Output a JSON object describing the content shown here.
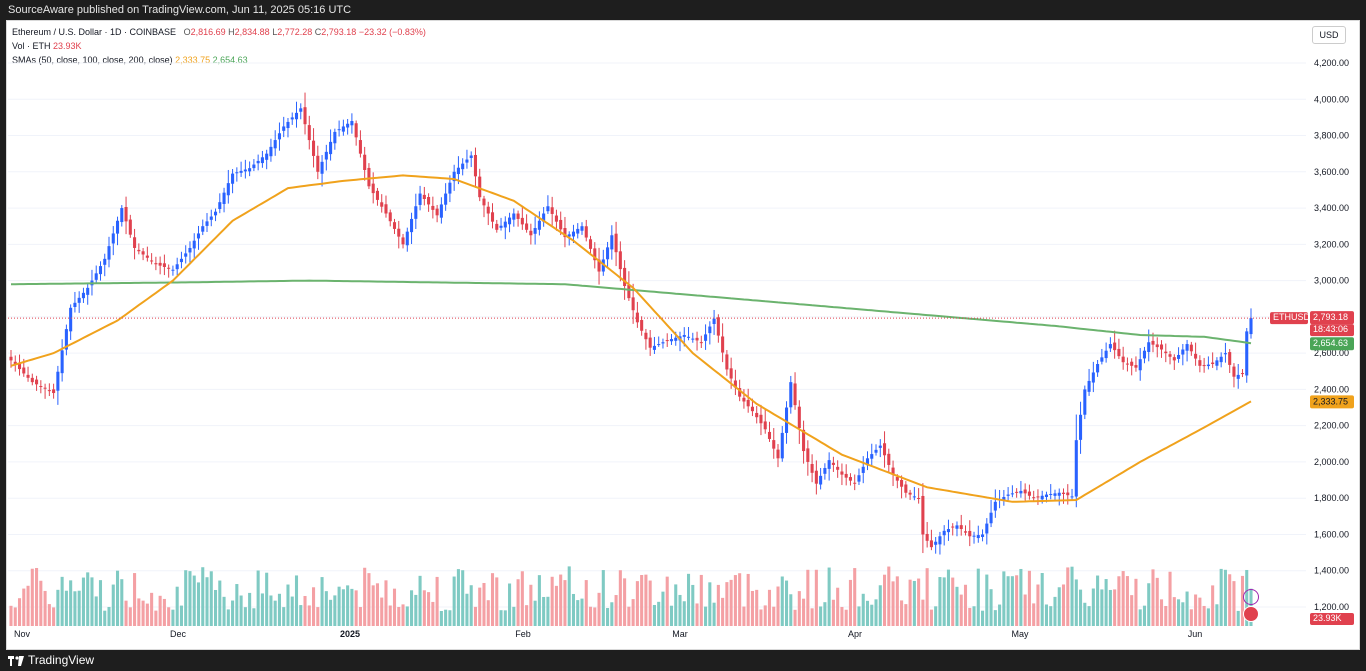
{
  "header": {
    "published": "SourceAware published on TradingView.com, Jun 11, 2025 05:16 UTC"
  },
  "footer": {
    "brand": "TradingView"
  },
  "legend": {
    "symbol": "Ethereum / U.S. Dollar · 1D · COINBASE",
    "o_label": "O",
    "o": "2,816.69",
    "h_label": "H",
    "h": "2,834.88",
    "l_label": "L",
    "l": "2,772.28",
    "c_label": "C",
    "c": "2,793.18",
    "change": "−23.32 (−0.83%)",
    "vol_label": "Vol · ETH",
    "vol": "23.93K",
    "sma_label": "SMAs (50, close, 100, close, 200, close)",
    "sma50": "2,333.75",
    "sma200": "2,654.63"
  },
  "currency": "USD",
  "price_tags": {
    "symbol": "ETHUSD",
    "last": "2,793.18",
    "countdown": "18:43:06",
    "sma200": "2,654.63",
    "sma50": "2,333.75",
    "volume": "23.93K"
  },
  "colors": {
    "up": "#2962ff",
    "down": "#e0414e",
    "vol_up": "#7fcac3",
    "vol_down": "#f4a0a4",
    "sma50": "#f0a21c",
    "sma200": "#6bb36e"
  },
  "chart_data": {
    "type": "candlestick",
    "y_ticks": [
      "4,200.00",
      "4,000.00",
      "3,800.00",
      "3,600.00",
      "3,400.00",
      "3,200.00",
      "3,000.00",
      "2,800.00",
      "2,600.00",
      "2,400.00",
      "2,200.00",
      "2,000.00",
      "1,800.00",
      "1,600.00",
      "1,400.00",
      "1,200.00"
    ],
    "x_ticks": [
      "Nov",
      "Dec",
      "2025",
      "Feb",
      "Mar",
      "Apr",
      "May",
      "Jun"
    ],
    "ylim": [
      1200,
      4200
    ],
    "anchors": [
      [
        0,
        2560
      ],
      [
        5,
        2440
      ],
      [
        10,
        2380
      ],
      [
        14,
        2850
      ],
      [
        18,
        2960
      ],
      [
        22,
        3120
      ],
      [
        26,
        3400
      ],
      [
        29,
        3180
      ],
      [
        34,
        3090
      ],
      [
        38,
        3060
      ],
      [
        42,
        3180
      ],
      [
        45,
        3300
      ],
      [
        48,
        3380
      ],
      [
        52,
        3590
      ],
      [
        56,
        3620
      ],
      [
        60,
        3700
      ],
      [
        64,
        3850
      ],
      [
        68,
        3950
      ],
      [
        72,
        3600
      ],
      [
        76,
        3820
      ],
      [
        80,
        3880
      ],
      [
        84,
        3520
      ],
      [
        88,
        3370
      ],
      [
        92,
        3200
      ],
      [
        96,
        3480
      ],
      [
        100,
        3360
      ],
      [
        104,
        3600
      ],
      [
        108,
        3690
      ],
      [
        110,
        3460
      ],
      [
        114,
        3280
      ],
      [
        118,
        3370
      ],
      [
        122,
        3250
      ],
      [
        126,
        3410
      ],
      [
        130,
        3240
      ],
      [
        134,
        3300
      ],
      [
        138,
        3050
      ],
      [
        141,
        3250
      ],
      [
        144,
        2970
      ],
      [
        147,
        2770
      ],
      [
        150,
        2630
      ],
      [
        154,
        2670
      ],
      [
        158,
        2700
      ],
      [
        162,
        2660
      ],
      [
        165,
        2790
      ],
      [
        168,
        2510
      ],
      [
        171,
        2360
      ],
      [
        174,
        2280
      ],
      [
        177,
        2180
      ],
      [
        180,
        2020
      ],
      [
        183,
        2440
      ],
      [
        186,
        2060
      ],
      [
        189,
        1880
      ],
      [
        192,
        2010
      ],
      [
        195,
        1930
      ],
      [
        198,
        1880
      ],
      [
        201,
        2020
      ],
      [
        204,
        2090
      ],
      [
        207,
        1930
      ],
      [
        210,
        1830
      ],
      [
        213,
        1800
      ],
      [
        214,
        1600
      ],
      [
        216,
        1530
      ],
      [
        219,
        1620
      ],
      [
        222,
        1650
      ],
      [
        225,
        1590
      ],
      [
        228,
        1600
      ],
      [
        231,
        1780
      ],
      [
        234,
        1820
      ],
      [
        237,
        1840
      ],
      [
        240,
        1800
      ],
      [
        243,
        1820
      ],
      [
        246,
        1830
      ],
      [
        249,
        1810
      ],
      [
        250,
        2120
      ],
      [
        252,
        2400
      ],
      [
        255,
        2540
      ],
      [
        258,
        2650
      ],
      [
        261,
        2550
      ],
      [
        264,
        2520
      ],
      [
        267,
        2660
      ],
      [
        270,
        2620
      ],
      [
        273,
        2560
      ],
      [
        276,
        2650
      ],
      [
        279,
        2530
      ],
      [
        282,
        2540
      ],
      [
        285,
        2600
      ],
      [
        287,
        2470
      ],
      [
        289,
        2490
      ],
      [
        290,
        2720
      ],
      [
        291,
        2793
      ]
    ],
    "sma50_anchors": [
      [
        0,
        2530
      ],
      [
        10,
        2600
      ],
      [
        25,
        2780
      ],
      [
        38,
        3000
      ],
      [
        52,
        3330
      ],
      [
        65,
        3510
      ],
      [
        78,
        3550
      ],
      [
        92,
        3580
      ],
      [
        104,
        3560
      ],
      [
        118,
        3440
      ],
      [
        132,
        3220
      ],
      [
        146,
        2960
      ],
      [
        160,
        2600
      ],
      [
        175,
        2320
      ],
      [
        195,
        2040
      ],
      [
        215,
        1860
      ],
      [
        235,
        1780
      ],
      [
        250,
        1790
      ],
      [
        265,
        2000
      ],
      [
        280,
        2190
      ],
      [
        291,
        2334
      ]
    ],
    "sma200_anchors": [
      [
        0,
        2980
      ],
      [
        40,
        2990
      ],
      [
        70,
        3000
      ],
      [
        100,
        2990
      ],
      [
        130,
        2980
      ],
      [
        160,
        2920
      ],
      [
        190,
        2860
      ],
      [
        220,
        2800
      ],
      [
        245,
        2750
      ],
      [
        265,
        2700
      ],
      [
        280,
        2690
      ],
      [
        291,
        2655
      ]
    ]
  }
}
